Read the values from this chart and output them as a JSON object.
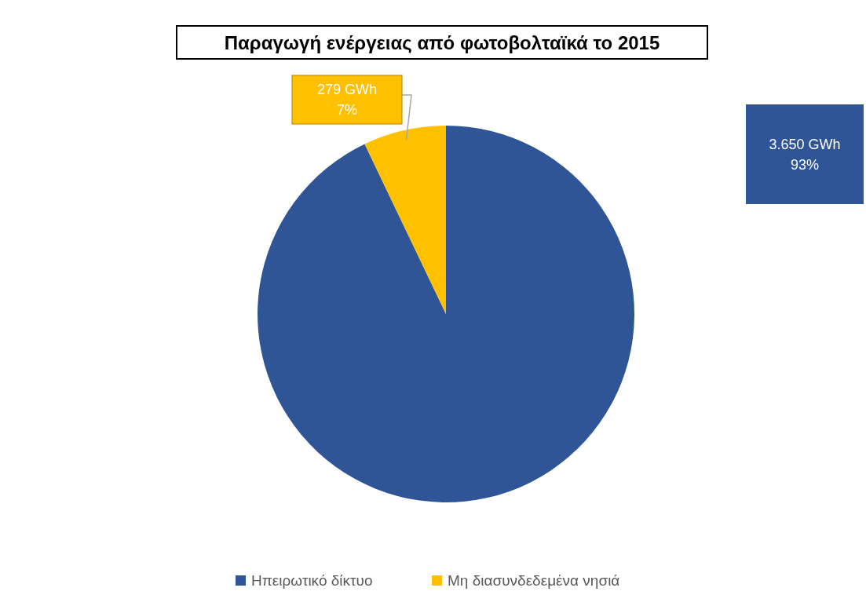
{
  "chart_data": {
    "type": "pie",
    "title": "Παραγωγή ενέργειας από φωτοβολταϊκά το 2015",
    "categories": [
      "Ηπειρωτικό δίκτυο",
      "Μη διασυνδεδεμένα νησιά"
    ],
    "values": [
      3650,
      279
    ],
    "colors": [
      "#2f5597",
      "#ffc000"
    ],
    "value_labels": [
      "3.650 GWh\n93%",
      "279 GWh\n7%"
    ],
    "legend": "bottom"
  }
}
